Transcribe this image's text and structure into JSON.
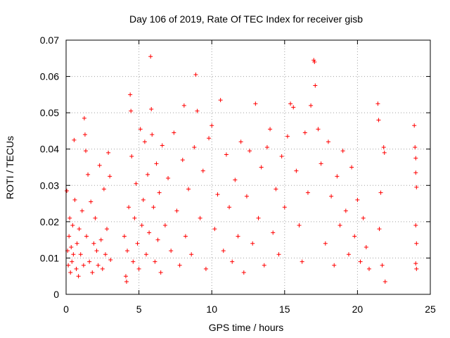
{
  "chart_data": {
    "type": "scatter",
    "title": "Day 106 of 2019, Rate Of TEC Index for receiver gisb",
    "xlabel": "GPS time / hours",
    "ylabel": "ROTI / TECUs",
    "xlim": [
      0,
      25
    ],
    "ylim": [
      0,
      0.07
    ],
    "x_ticks": [
      0,
      5,
      10,
      15,
      20,
      25
    ],
    "x_tick_labels": [
      "0",
      "5",
      "10",
      "15",
      "20",
      "25"
    ],
    "y_ticks": [
      0,
      0.01,
      0.02,
      0.03,
      0.04,
      0.05,
      0.06,
      0.07
    ],
    "y_tick_labels": [
      "0",
      "0.01",
      "0.02",
      "0.03",
      "0.04",
      "0.05",
      "0.06",
      "0.07"
    ],
    "grid": true,
    "marker": "plus",
    "color": "#ff0000",
    "series": [
      {
        "name": "ROTI",
        "points": [
          [
            0.05,
            0.0285
          ],
          [
            0.1,
            0.012
          ],
          [
            0.15,
            0.008
          ],
          [
            0.2,
            0.016
          ],
          [
            0.25,
            0.021
          ],
          [
            0.3,
            0.006
          ],
          [
            0.35,
            0.013
          ],
          [
            0.4,
            0.009
          ],
          [
            0.45,
            0.019
          ],
          [
            0.5,
            0.011
          ],
          [
            0.55,
            0.0425
          ],
          [
            0.6,
            0.026
          ],
          [
            0.7,
            0.007
          ],
          [
            0.75,
            0.014
          ],
          [
            0.85,
            0.005
          ],
          [
            0.9,
            0.018
          ],
          [
            1.0,
            0.011
          ],
          [
            1.1,
            0.023
          ],
          [
            1.2,
            0.008
          ],
          [
            1.25,
            0.0485
          ],
          [
            1.3,
            0.044
          ],
          [
            1.35,
            0.0395
          ],
          [
            1.4,
            0.016
          ],
          [
            1.5,
            0.033
          ],
          [
            1.6,
            0.009
          ],
          [
            1.7,
            0.0255
          ],
          [
            1.8,
            0.006
          ],
          [
            1.9,
            0.014
          ],
          [
            2.0,
            0.021
          ],
          [
            2.1,
            0.012
          ],
          [
            2.2,
            0.008
          ],
          [
            2.3,
            0.0355
          ],
          [
            2.4,
            0.015
          ],
          [
            2.5,
            0.007
          ],
          [
            2.6,
            0.029
          ],
          [
            2.7,
            0.011
          ],
          [
            2.8,
            0.018
          ],
          [
            2.9,
            0.039
          ],
          [
            3.0,
            0.0325
          ],
          [
            3.05,
            0.0095
          ],
          [
            4.0,
            0.016
          ],
          [
            4.1,
            0.005
          ],
          [
            4.15,
            0.0035
          ],
          [
            4.2,
            0.012
          ],
          [
            4.3,
            0.024
          ],
          [
            4.4,
            0.055
          ],
          [
            4.45,
            0.0505
          ],
          [
            4.5,
            0.038
          ],
          [
            4.6,
            0.009
          ],
          [
            4.7,
            0.021
          ],
          [
            4.8,
            0.0305
          ],
          [
            4.9,
            0.014
          ],
          [
            5.0,
            0.007
          ],
          [
            5.1,
            0.0455
          ],
          [
            5.2,
            0.019
          ],
          [
            5.3,
            0.026
          ],
          [
            5.4,
            0.042
          ],
          [
            5.5,
            0.011
          ],
          [
            5.6,
            0.033
          ],
          [
            5.7,
            0.017
          ],
          [
            5.8,
            0.0655
          ],
          [
            5.85,
            0.051
          ],
          [
            5.9,
            0.044
          ],
          [
            6.0,
            0.024
          ],
          [
            6.1,
            0.009
          ],
          [
            6.2,
            0.036
          ],
          [
            6.3,
            0.015
          ],
          [
            6.4,
            0.028
          ],
          [
            6.5,
            0.006
          ],
          [
            6.6,
            0.041
          ],
          [
            6.8,
            0.019
          ],
          [
            7.0,
            0.032
          ],
          [
            7.2,
            0.012
          ],
          [
            7.4,
            0.0445
          ],
          [
            7.6,
            0.023
          ],
          [
            7.8,
            0.008
          ],
          [
            8.0,
            0.037
          ],
          [
            8.1,
            0.052
          ],
          [
            8.2,
            0.016
          ],
          [
            8.4,
            0.029
          ],
          [
            8.6,
            0.011
          ],
          [
            8.8,
            0.0405
          ],
          [
            8.9,
            0.0605
          ],
          [
            9.0,
            0.0505
          ],
          [
            9.2,
            0.021
          ],
          [
            9.4,
            0.034
          ],
          [
            9.6,
            0.007
          ],
          [
            9.8,
            0.043
          ],
          [
            10.0,
            0.0465
          ],
          [
            10.2,
            0.018
          ],
          [
            10.4,
            0.0275
          ],
          [
            10.6,
            0.0535
          ],
          [
            10.8,
            0.012
          ],
          [
            11.0,
            0.0385
          ],
          [
            11.2,
            0.024
          ],
          [
            11.4,
            0.009
          ],
          [
            11.6,
            0.0315
          ],
          [
            11.8,
            0.016
          ],
          [
            12.0,
            0.042
          ],
          [
            12.2,
            0.006
          ],
          [
            12.4,
            0.027
          ],
          [
            12.6,
            0.0395
          ],
          [
            12.8,
            0.014
          ],
          [
            13.0,
            0.0525
          ],
          [
            13.2,
            0.021
          ],
          [
            13.4,
            0.035
          ],
          [
            13.6,
            0.008
          ],
          [
            13.8,
            0.0405
          ],
          [
            14.0,
            0.0455
          ],
          [
            14.2,
            0.017
          ],
          [
            14.4,
            0.029
          ],
          [
            14.6,
            0.011
          ],
          [
            14.8,
            0.038
          ],
          [
            15.0,
            0.024
          ],
          [
            15.2,
            0.0435
          ],
          [
            15.4,
            0.0525
          ],
          [
            15.6,
            0.0515
          ],
          [
            15.8,
            0.034
          ],
          [
            16.0,
            0.019
          ],
          [
            16.2,
            0.009
          ],
          [
            16.4,
            0.0445
          ],
          [
            16.6,
            0.028
          ],
          [
            16.8,
            0.052
          ],
          [
            17.0,
            0.0645
          ],
          [
            17.05,
            0.064
          ],
          [
            17.1,
            0.0575
          ],
          [
            17.3,
            0.0455
          ],
          [
            17.5,
            0.036
          ],
          [
            17.8,
            0.014
          ],
          [
            18.0,
            0.042
          ],
          [
            18.2,
            0.027
          ],
          [
            18.4,
            0.008
          ],
          [
            18.6,
            0.0325
          ],
          [
            18.8,
            0.019
          ],
          [
            19.0,
            0.0395
          ],
          [
            19.2,
            0.023
          ],
          [
            19.4,
            0.011
          ],
          [
            19.6,
            0.035
          ],
          [
            19.8,
            0.016
          ],
          [
            20.0,
            0.026
          ],
          [
            20.2,
            0.009
          ],
          [
            20.4,
            0.021
          ],
          [
            20.6,
            0.013
          ],
          [
            20.8,
            0.007
          ],
          [
            21.4,
            0.0525
          ],
          [
            21.45,
            0.048
          ],
          [
            21.5,
            0.018
          ],
          [
            21.6,
            0.028
          ],
          [
            21.7,
            0.008
          ],
          [
            21.8,
            0.0405
          ],
          [
            21.85,
            0.039
          ],
          [
            21.9,
            0.0035
          ],
          [
            23.9,
            0.0465
          ],
          [
            23.95,
            0.0405
          ],
          [
            24.0,
            0.0375
          ],
          [
            24.0,
            0.0335
          ],
          [
            24.05,
            0.0295
          ],
          [
            24.0,
            0.019
          ],
          [
            24.05,
            0.014
          ],
          [
            24.0,
            0.0085
          ],
          [
            24.05,
            0.007
          ]
        ]
      }
    ]
  }
}
